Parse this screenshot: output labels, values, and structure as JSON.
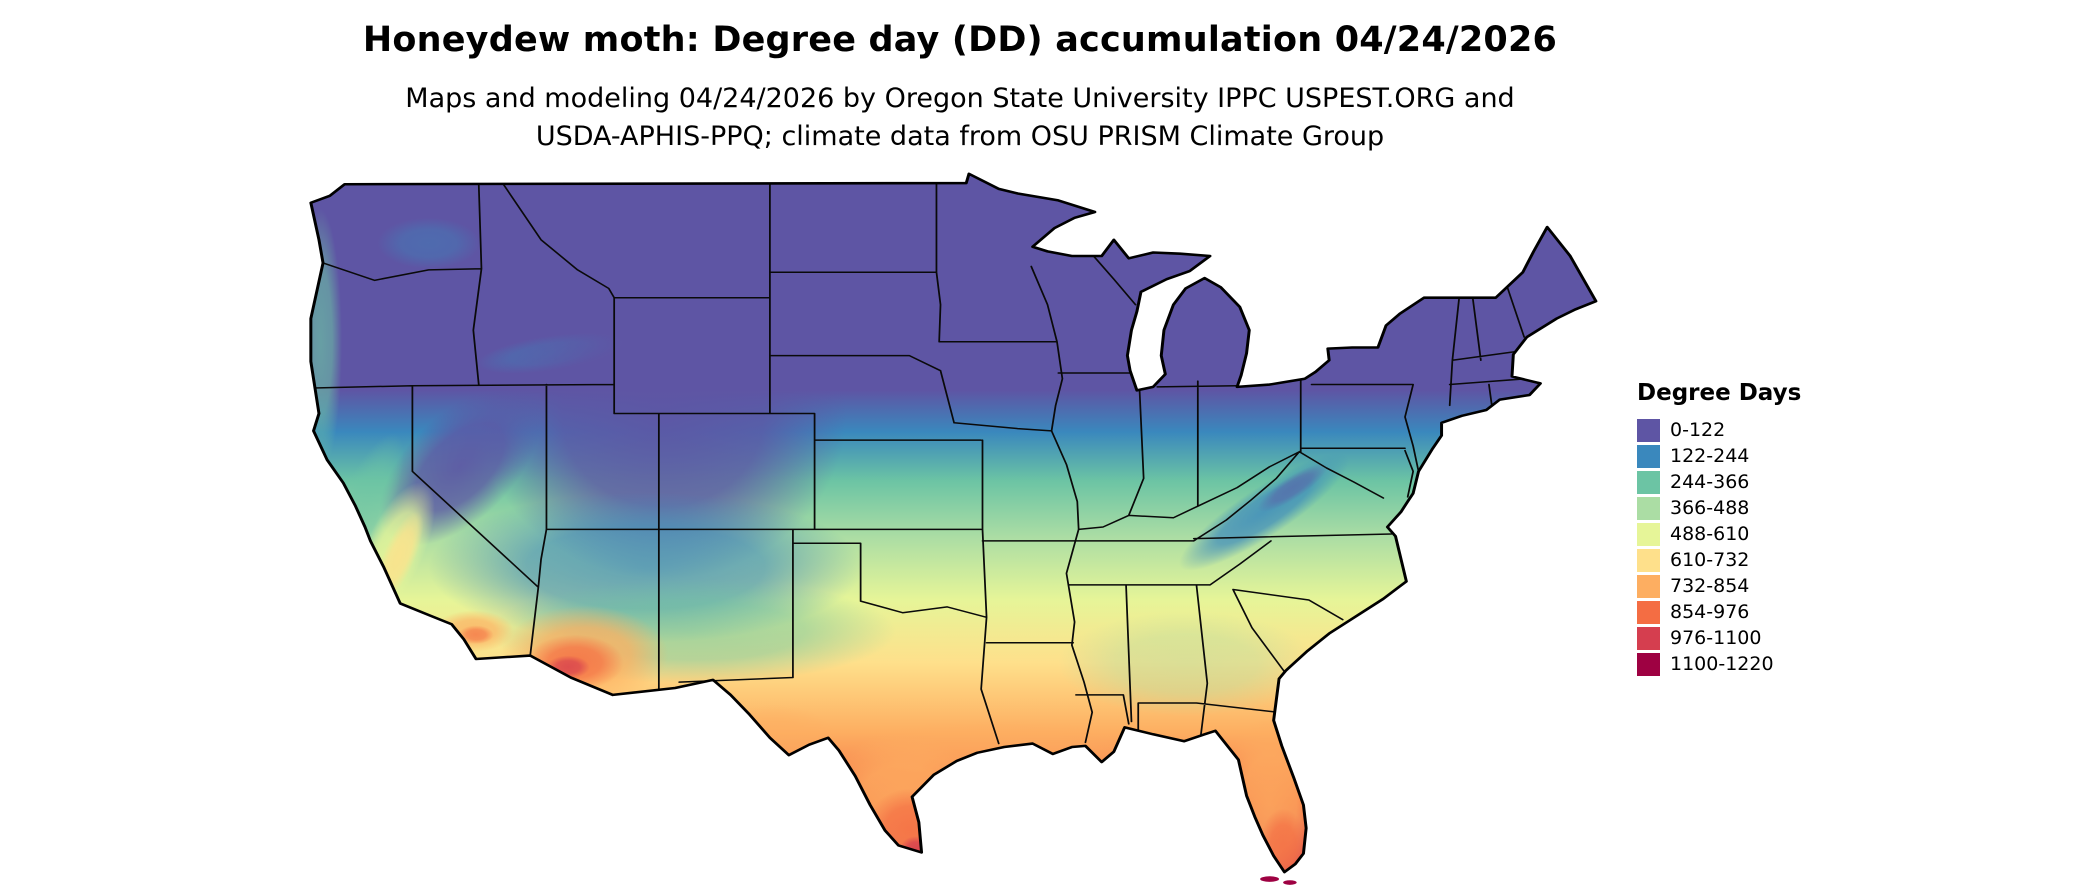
{
  "title": "Honeydew moth: Degree day (DD) accumulation 04/24/2026",
  "subtitle_line1": "Maps and modeling 04/24/2026 by Oregon State University IPPC USPEST.ORG and",
  "subtitle_line2": "USDA-APHIS-PPQ; climate data from OSU PRISM Climate Group",
  "legend": {
    "title": "Degree Days",
    "entries": [
      {
        "label": "0-122",
        "color": "#5e55a4"
      },
      {
        "label": "122-244",
        "color": "#3a88bd"
      },
      {
        "label": "244-366",
        "color": "#6cc4a4"
      },
      {
        "label": "366-488",
        "color": "#abdda4"
      },
      {
        "label": "488-610",
        "color": "#e6f598"
      },
      {
        "label": "610-732",
        "color": "#fee08b"
      },
      {
        "label": "732-854",
        "color": "#fdae61"
      },
      {
        "label": "854-976",
        "color": "#f46d43"
      },
      {
        "label": "976-1100",
        "color": "#d53e4f"
      },
      {
        "label": "1100-1220",
        "color": "#9e0142"
      }
    ]
  },
  "map": {
    "region": "Contiguous United States",
    "layer": "Degree day (DD) accumulation raster",
    "border_color": "#000000"
  }
}
